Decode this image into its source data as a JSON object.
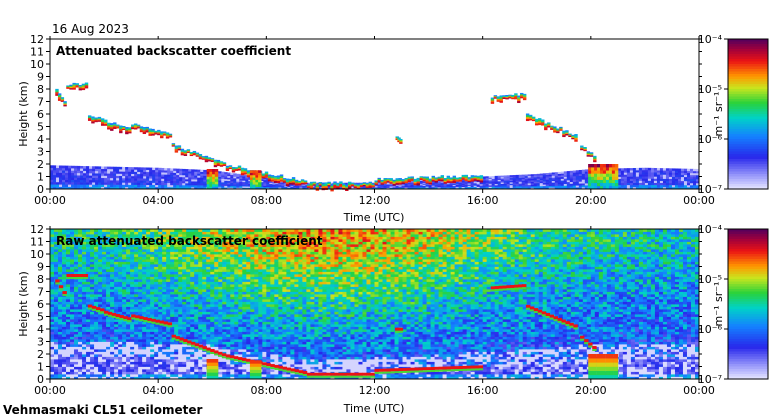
{
  "date_label": "16 Aug 2023",
  "footer_label": "Vehmasmaki CL51 ceilometer",
  "chart_data": [
    {
      "type": "heatmap",
      "title": "Attenuated backscatter coefficient",
      "xlabel": "Time (UTC)",
      "ylabel": "Height (km)",
      "xlim": [
        0,
        24
      ],
      "ylim": [
        0,
        12
      ],
      "x_ticks": [
        "00:00",
        "04:00",
        "08:00",
        "12:00",
        "16:00",
        "20:00",
        "00:00"
      ],
      "y_ticks": [
        "0",
        "1",
        "2",
        "3",
        "4",
        "5",
        "6",
        "7",
        "8",
        "9",
        "10",
        "11",
        "12"
      ],
      "colorbar": {
        "unit_label": "m⁻¹ sr⁻¹",
        "ticks": [
          "10⁻⁴",
          "10⁻⁵",
          "10⁻⁶",
          "10⁻⁷"
        ],
        "log_range": [
          -7,
          -4
        ]
      },
      "features": {
        "boundary_layer_top_km": [
          [
            0,
            1.9
          ],
          [
            2,
            1.8
          ],
          [
            4,
            1.7
          ],
          [
            6,
            1.5
          ],
          [
            8,
            0.9
          ],
          [
            9,
            0.5
          ],
          [
            12,
            0.5
          ],
          [
            14,
            0.7
          ],
          [
            16,
            1.0
          ],
          [
            18,
            1.2
          ],
          [
            20,
            1.6
          ],
          [
            22,
            1.7
          ],
          [
            24,
            1.6
          ]
        ],
        "cloud_layers": [
          {
            "t_start": 0.2,
            "t_end": 0.6,
            "h_start_km": 8.2,
            "h_end_km": 6.8
          },
          {
            "t_start": 0.6,
            "t_end": 1.4,
            "h_start_km": 8.4,
            "h_end_km": 8.4
          },
          {
            "t_start": 1.4,
            "t_end": 2.0,
            "h_start_km": 6.0,
            "h_end_km": 5.6
          },
          {
            "t_start": 2.0,
            "t_end": 3.0,
            "h_start_km": 5.5,
            "h_end_km": 4.9
          },
          {
            "t_start": 3.0,
            "t_end": 4.5,
            "h_start_km": 5.2,
            "h_end_km": 4.5
          },
          {
            "t_start": 4.5,
            "t_end": 6.5,
            "h_start_km": 3.6,
            "h_end_km": 2.0
          },
          {
            "t_start": 6.5,
            "t_end": 9.5,
            "h_start_km": 2.0,
            "h_end_km": 0.6
          },
          {
            "t_start": 9.5,
            "t_end": 12.0,
            "h_start_km": 0.5,
            "h_end_km": 0.5
          },
          {
            "t_start": 12.0,
            "t_end": 16.0,
            "h_start_km": 0.8,
            "h_end_km": 1.1
          },
          {
            "t_start": 16.3,
            "t_end": 17.6,
            "h_start_km": 7.4,
            "h_end_km": 7.6
          },
          {
            "t_start": 17.6,
            "t_end": 19.5,
            "h_start_km": 6.0,
            "h_end_km": 4.3
          },
          {
            "t_start": 19.6,
            "t_end": 20.2,
            "h_start_km": 3.6,
            "h_end_km": 2.5
          },
          {
            "t_start": 12.8,
            "t_end": 13.0,
            "h_start_km": 4.1,
            "h_end_km": 4.1
          }
        ],
        "intense_regions": [
          {
            "t_start": 5.8,
            "t_end": 6.2,
            "h_top_km": 1.6
          },
          {
            "t_start": 7.4,
            "t_end": 7.8,
            "h_top_km": 1.5
          },
          {
            "t_start": 19.9,
            "t_end": 21.0,
            "h_top_km": 2.0
          }
        ]
      }
    },
    {
      "type": "heatmap",
      "title": "Raw attenuated backscatter coefficient",
      "xlabel": "Time (UTC)",
      "ylabel": "Height (km)",
      "xlim": [
        0,
        24
      ],
      "ylim": [
        0,
        12
      ],
      "x_ticks": [
        "00:00",
        "04:00",
        "08:00",
        "12:00",
        "16:00",
        "20:00",
        "00:00"
      ],
      "y_ticks": [
        "0",
        "1",
        "2",
        "3",
        "4",
        "5",
        "6",
        "7",
        "8",
        "9",
        "10",
        "11",
        "12"
      ],
      "colorbar": {
        "unit_label": "m⁻¹ sr⁻¹",
        "ticks": [
          "10⁻⁴",
          "10⁻⁵",
          "10⁻⁶",
          "10⁻⁷"
        ],
        "log_range": [
          -7,
          -4
        ]
      },
      "features": {
        "noise_pattern": "noise intensity increases with height and peaks near midday",
        "noise_peak_time_hours": 10.5
      }
    }
  ]
}
